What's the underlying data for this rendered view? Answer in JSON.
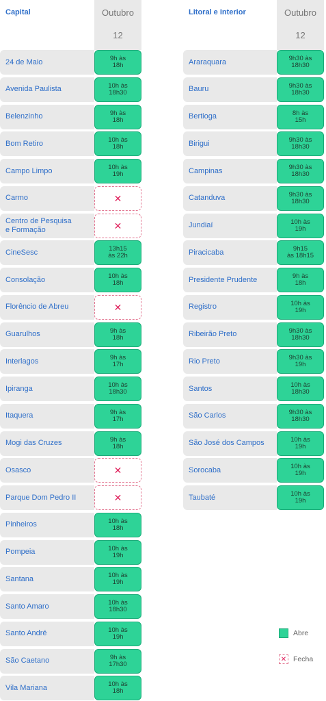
{
  "header": {
    "month": "Outubro",
    "day": "12"
  },
  "capital": {
    "title": "Capital",
    "rows": [
      {
        "name": "24 de Maio",
        "status": "open",
        "hours": "9h às\n18h"
      },
      {
        "name": "Avenida Paulista",
        "status": "open",
        "hours": "10h às\n18h30"
      },
      {
        "name": "Belenzinho",
        "status": "open",
        "hours": "9h às\n18h"
      },
      {
        "name": "Bom Retiro",
        "status": "open",
        "hours": "10h às\n18h"
      },
      {
        "name": "Campo Limpo",
        "status": "open",
        "hours": "10h às\n19h"
      },
      {
        "name": "Carmo",
        "status": "closed",
        "hours": "✕"
      },
      {
        "name": "Centro de Pesquisa\ne Formação",
        "status": "closed",
        "hours": "✕"
      },
      {
        "name": "CineSesc",
        "status": "open",
        "hours": "13h15\nàs 22h"
      },
      {
        "name": "Consolação",
        "status": "open",
        "hours": "10h às\n18h"
      },
      {
        "name": "Florêncio de Abreu",
        "status": "closed",
        "hours": "✕"
      },
      {
        "name": "Guarulhos",
        "status": "open",
        "hours": "9h às\n18h"
      },
      {
        "name": "Interlagos",
        "status": "open",
        "hours": "9h às\n17h"
      },
      {
        "name": "Ipiranga",
        "status": "open",
        "hours": "10h às\n18h30"
      },
      {
        "name": "Itaquera",
        "status": "open",
        "hours": "9h às\n17h"
      },
      {
        "name": "Mogi das Cruzes",
        "status": "open",
        "hours": "9h às\n18h"
      },
      {
        "name": "Osasco",
        "status": "closed",
        "hours": "✕"
      },
      {
        "name": "Parque Dom Pedro II",
        "status": "closed",
        "hours": "✕"
      },
      {
        "name": "Pinheiros",
        "status": "open",
        "hours": "10h às\n18h"
      },
      {
        "name": "Pompeia",
        "status": "open",
        "hours": "10h às\n19h"
      },
      {
        "name": "Santana",
        "status": "open",
        "hours": "10h às\n19h"
      },
      {
        "name": "Santo Amaro",
        "status": "open",
        "hours": "10h às\n18h30"
      },
      {
        "name": "Santo André",
        "status": "open",
        "hours": "10h às\n19h"
      },
      {
        "name": "São Caetano",
        "status": "open",
        "hours": "9h às\n17h30"
      },
      {
        "name": "Vila Mariana",
        "status": "open",
        "hours": "10h às\n18h"
      }
    ]
  },
  "interior": {
    "title": "Litoral e Interior",
    "rows": [
      {
        "name": "Araraquara",
        "status": "open",
        "hours": "9h30 às\n18h30"
      },
      {
        "name": "Bauru",
        "status": "open",
        "hours": "9h30 às\n18h30"
      },
      {
        "name": "Bertioga",
        "status": "open",
        "hours": "8h às\n15h"
      },
      {
        "name": "Birigui",
        "status": "open",
        "hours": "9h30 às\n18h30"
      },
      {
        "name": "Campinas",
        "status": "open",
        "hours": "9h30 às\n18h30"
      },
      {
        "name": "Catanduva",
        "status": "open",
        "hours": "9h30 às\n18h30"
      },
      {
        "name": "Jundiaí",
        "status": "open",
        "hours": "10h às\n19h"
      },
      {
        "name": "Piracicaba",
        "status": "open",
        "hours": "9h15\nàs 18h15"
      },
      {
        "name": "Presidente Prudente",
        "status": "open",
        "hours": "9h às\n18h"
      },
      {
        "name": "Registro",
        "status": "open",
        "hours": "10h às\n19h"
      },
      {
        "name": "Ribeirão Preto",
        "status": "open",
        "hours": "9h30 às\n18h30"
      },
      {
        "name": "Rio Preto",
        "status": "open",
        "hours": "9h30 às\n19h"
      },
      {
        "name": "Santos",
        "status": "open",
        "hours": "10h às\n18h30"
      },
      {
        "name": "São Carlos",
        "status": "open",
        "hours": "9h30 às\n18h30"
      },
      {
        "name": "São José dos Campos",
        "status": "open",
        "hours": "10h às\n19h"
      },
      {
        "name": "Sorocaba",
        "status": "open",
        "hours": "10h às\n19h"
      },
      {
        "name": "Taubaté",
        "status": "open",
        "hours": "10h às\n19h"
      }
    ]
  },
  "legend": {
    "open_label": "Abre",
    "closed_label": "Fecha",
    "closed_icon": "✕"
  },
  "colors": {
    "open": "#2ed397",
    "closed_border": "#e37792",
    "link_text": "#2f6fc9",
    "row_bg": "#e9e9e9"
  }
}
